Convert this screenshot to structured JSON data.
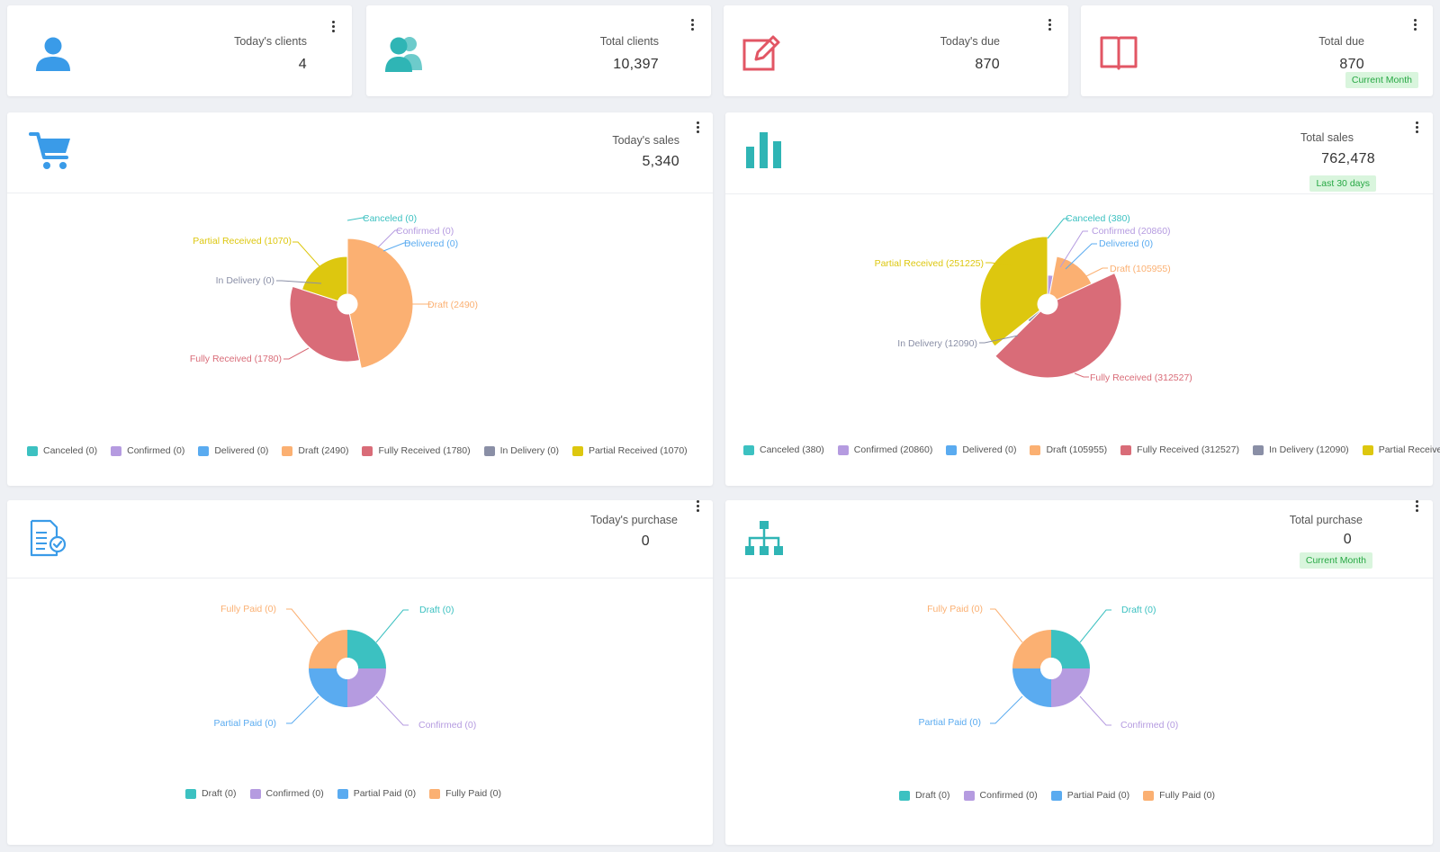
{
  "colors": {
    "teal": "#3cc1c1",
    "purple": "#b59be0",
    "blue": "#5aabf0",
    "orange": "#fbb072",
    "red": "#d96c78",
    "gray": "#8a8fa6",
    "yellow": "#ddc70f",
    "icon_blue": "#3a9be8",
    "icon_teal": "#2fb5b5",
    "icon_red": "#e25664"
  },
  "stats": [
    {
      "label": "Today's clients",
      "value": "4",
      "icon": "user-icon"
    },
    {
      "label": "Total clients",
      "value": "10,397",
      "icon": "users-icon"
    },
    {
      "label": "Today's due",
      "value": "870",
      "icon": "edit-icon"
    },
    {
      "label": "Total due",
      "value": "870",
      "icon": "book-icon",
      "badge": "Current Month"
    }
  ],
  "panels": {
    "today_sales": {
      "label": "Today's sales",
      "value": "5,340",
      "icon": "cart-icon"
    },
    "total_sales": {
      "label": "Total sales",
      "value": "762,478",
      "badge": "Last 30 days",
      "icon": "bar-chart-icon"
    },
    "today_purchase": {
      "label": "Today's purchase",
      "value": "0",
      "icon": "document-check-icon"
    },
    "total_purchase": {
      "label": "Total purchase",
      "value": "0",
      "badge": "Current Month",
      "icon": "org-chart-icon"
    }
  },
  "chart_data": [
    {
      "type": "pie",
      "variant": "nightingale-rose",
      "series": [
        {
          "name": "Canceled",
          "value": 0,
          "label": "Canceled (0)",
          "color": "#3cc1c1"
        },
        {
          "name": "Confirmed",
          "value": 0,
          "label": "Confirmed (0)",
          "color": "#b59be0"
        },
        {
          "name": "Delivered",
          "value": 0,
          "label": "Delivered (0)",
          "color": "#5aabf0"
        },
        {
          "name": "Draft",
          "value": 2490,
          "label": "Draft (2490)",
          "color": "#fbb072"
        },
        {
          "name": "Fully Received",
          "value": 1780,
          "label": "Fully Received (1780)",
          "color": "#d96c78"
        },
        {
          "name": "In Delivery",
          "value": 0,
          "label": "In Delivery (0)",
          "color": "#8a8fa6"
        },
        {
          "name": "Partial Received",
          "value": 1070,
          "label": "Partial Received (1070)",
          "color": "#ddc70f"
        }
      ],
      "legend": "bottom"
    },
    {
      "type": "pie",
      "variant": "nightingale-rose",
      "series": [
        {
          "name": "Canceled",
          "value": 380,
          "label": "Canceled (380)",
          "color": "#3cc1c1"
        },
        {
          "name": "Confirmed",
          "value": 20860,
          "label": "Confirmed (20860)",
          "color": "#b59be0"
        },
        {
          "name": "Delivered",
          "value": 0,
          "label": "Delivered (0)",
          "color": "#5aabf0"
        },
        {
          "name": "Draft",
          "value": 105955,
          "label": "Draft (105955)",
          "color": "#fbb072"
        },
        {
          "name": "Fully Received",
          "value": 312527,
          "label": "Fully Received (312527)",
          "color": "#d96c78"
        },
        {
          "name": "In Delivery",
          "value": 12090,
          "label": "In Delivery (12090)",
          "color": "#8a8fa6"
        },
        {
          "name": "Partial Received",
          "value": 251225,
          "label": "Partial Received (251225)",
          "color": "#ddc70f"
        }
      ],
      "legend": "bottom"
    },
    {
      "type": "pie",
      "variant": "donut",
      "series": [
        {
          "name": "Draft",
          "value": 0,
          "label": "Draft (0)",
          "color": "#3cc1c1"
        },
        {
          "name": "Confirmed",
          "value": 0,
          "label": "Confirmed (0)",
          "color": "#b59be0"
        },
        {
          "name": "Partial Paid",
          "value": 0,
          "label": "Partial Paid (0)",
          "color": "#5aabf0"
        },
        {
          "name": "Fully Paid",
          "value": 0,
          "label": "Fully Paid (0)",
          "color": "#fbb072"
        }
      ],
      "legend": "bottom"
    },
    {
      "type": "pie",
      "variant": "donut",
      "series": [
        {
          "name": "Draft",
          "value": 0,
          "label": "Draft (0)",
          "color": "#3cc1c1"
        },
        {
          "name": "Confirmed",
          "value": 0,
          "label": "Confirmed (0)",
          "color": "#b59be0"
        },
        {
          "name": "Partial Paid",
          "value": 0,
          "label": "Partial Paid (0)",
          "color": "#5aabf0"
        },
        {
          "name": "Fully Paid",
          "value": 0,
          "label": "Fully Paid (0)",
          "color": "#fbb072"
        }
      ],
      "legend": "bottom"
    }
  ]
}
